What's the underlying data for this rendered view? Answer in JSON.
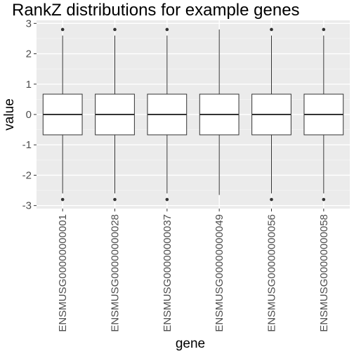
{
  "chart_data": {
    "type": "box",
    "title": "RankZ distributions for example genes",
    "xlabel": "gene",
    "ylabel": "value",
    "ylim": [
      -3.1,
      3.1
    ],
    "yticks": [
      3,
      2,
      1,
      0,
      -1,
      -2,
      -3
    ],
    "ytick_labels": [
      "3",
      "2",
      "1",
      "0",
      "-1",
      "-2",
      "-3"
    ],
    "grid": true,
    "categories": [
      "ENSMUSG00000000001",
      "ENSMUSG00000000028",
      "ENSMUSG00000000037",
      "ENSMUSG00000000049",
      "ENSMUSG00000000056",
      "ENSMUSG00000000058"
    ],
    "boxes": [
      {
        "q1": -0.67,
        "median": 0,
        "q3": 0.67,
        "whisker_low": -2.6,
        "whisker_high": 2.6,
        "outliers": [
          2.8,
          -2.8
        ]
      },
      {
        "q1": -0.67,
        "median": 0,
        "q3": 0.67,
        "whisker_low": -2.6,
        "whisker_high": 2.6,
        "outliers": [
          2.8,
          -2.8
        ]
      },
      {
        "q1": -0.67,
        "median": 0,
        "q3": 0.67,
        "whisker_low": -2.6,
        "whisker_high": 2.6,
        "outliers": [
          2.8,
          -2.8
        ]
      },
      {
        "q1": -0.67,
        "median": 0,
        "q3": 0.67,
        "whisker_low": -2.65,
        "whisker_high": 2.8,
        "outliers": []
      },
      {
        "q1": -0.67,
        "median": 0,
        "q3": 0.67,
        "whisker_low": -2.6,
        "whisker_high": 2.6,
        "outliers": [
          2.8,
          -2.8
        ]
      },
      {
        "q1": -0.67,
        "median": 0,
        "q3": 0.67,
        "whisker_low": -2.6,
        "whisker_high": 2.6,
        "outliers": [
          2.8,
          -2.8
        ]
      }
    ],
    "colors": {
      "panel": "#ebebeb",
      "grid_major": "#ffffff",
      "grid_minor": "#f5f5f5",
      "box_fill": "#ffffff",
      "box_stroke": "#333333",
      "tick_text": "#4d4d4d"
    }
  }
}
